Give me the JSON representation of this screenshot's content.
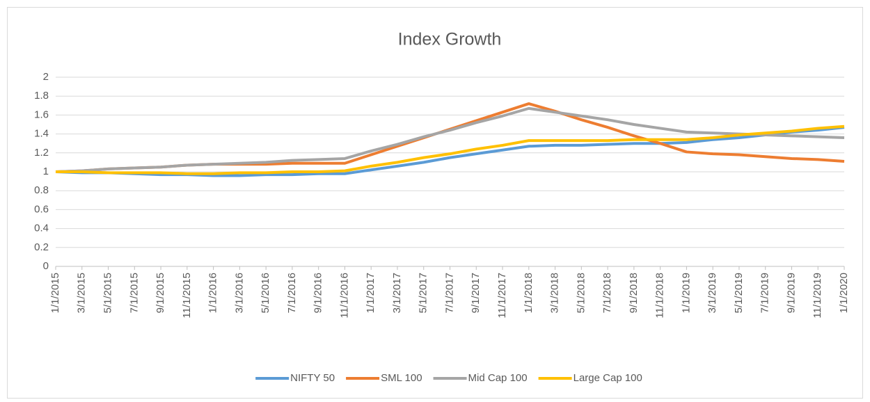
{
  "chart_data": {
    "type": "line",
    "title": "Index Growth",
    "categories": [
      "1/1/2015",
      "3/1/2015",
      "5/1/2015",
      "7/1/2015",
      "9/1/2015",
      "11/1/2015",
      "1/1/2016",
      "3/1/2016",
      "5/1/2016",
      "7/1/2016",
      "9/1/2016",
      "11/1/2016",
      "1/1/2017",
      "3/1/2017",
      "5/1/2017",
      "7/1/2017",
      "9/1/2017",
      "11/1/2017",
      "1/1/2018",
      "3/1/2018",
      "5/1/2018",
      "7/1/2018",
      "9/1/2018",
      "11/1/2018",
      "1/1/2019",
      "3/1/2019",
      "5/1/2019",
      "7/1/2019",
      "9/1/2019",
      "11/1/2019",
      "1/1/2020"
    ],
    "series": [
      {
        "name": "NIFTY 50",
        "color": "#5b9bd5",
        "values": [
          1,
          0.99,
          0.99,
          0.98,
          0.97,
          0.97,
          0.96,
          0.96,
          0.97,
          0.97,
          0.98,
          0.98,
          1.02,
          1.06,
          1.1,
          1.15,
          1.19,
          1.23,
          1.27,
          1.28,
          1.28,
          1.29,
          1.3,
          1.3,
          1.31,
          1.34,
          1.36,
          1.39,
          1.42,
          1.44,
          1.47
        ]
      },
      {
        "name": "SML 100",
        "color": "#ed7d31",
        "values": [
          1,
          1.01,
          1.03,
          1.04,
          1.05,
          1.07,
          1.08,
          1.08,
          1.08,
          1.09,
          1.09,
          1.09,
          1.18,
          1.27,
          1.36,
          1.45,
          1.54,
          1.63,
          1.72,
          1.64,
          1.55,
          1.47,
          1.38,
          1.3,
          1.21,
          1.19,
          1.18,
          1.16,
          1.14,
          1.13,
          1.11
        ]
      },
      {
        "name": "Mid Cap 100",
        "color": "#a5a5a5",
        "values": [
          1,
          1.01,
          1.03,
          1.04,
          1.05,
          1.07,
          1.08,
          1.09,
          1.1,
          1.12,
          1.13,
          1.14,
          1.22,
          1.29,
          1.37,
          1.44,
          1.52,
          1.59,
          1.67,
          1.63,
          1.59,
          1.55,
          1.5,
          1.46,
          1.42,
          1.41,
          1.4,
          1.39,
          1.38,
          1.37,
          1.36
        ]
      },
      {
        "name": "Large Cap 100",
        "color": "#ffc000",
        "values": [
          1,
          1.0,
          0.99,
          0.99,
          0.99,
          0.98,
          0.98,
          0.99,
          0.99,
          1.0,
          1.0,
          1.01,
          1.06,
          1.1,
          1.15,
          1.19,
          1.24,
          1.28,
          1.33,
          1.33,
          1.33,
          1.33,
          1.34,
          1.34,
          1.34,
          1.36,
          1.39,
          1.41,
          1.43,
          1.46,
          1.48
        ]
      }
    ],
    "ylim": [
      0,
      2
    ],
    "yticks": [
      0,
      0.2,
      0.4,
      0.6,
      0.8,
      1,
      1.2,
      1.4,
      1.6,
      1.8,
      2
    ],
    "grid": true,
    "legend": "bottom"
  }
}
